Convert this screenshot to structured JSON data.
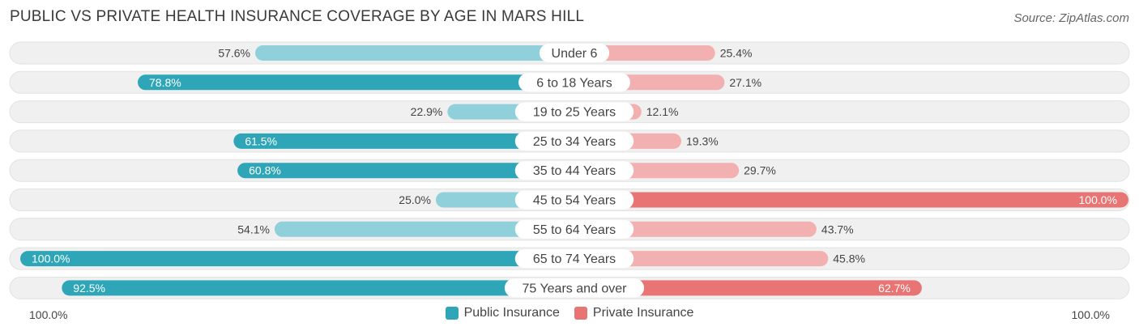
{
  "title": "PUBLIC VS PRIVATE HEALTH INSURANCE COVERAGE BY AGE IN MARS HILL",
  "source": "Source: ZipAtlas.com",
  "axis": {
    "left_label": "100.0%",
    "right_label": "100.0%"
  },
  "legend": {
    "public_label": "Public Insurance",
    "private_label": "Private Insurance"
  },
  "colors": {
    "public_strong": "#2ea6b8",
    "public_light": "#8fd0da",
    "private_strong": "#e87474",
    "private_light": "#f2b0b0",
    "row_bg": "#f0f0f0"
  },
  "chart_data": {
    "type": "bar",
    "orientation": "diverging-horizontal",
    "categories": [
      "Under 6",
      "6 to 18 Years",
      "19 to 25 Years",
      "25 to 34 Years",
      "35 to 44 Years",
      "45 to 54 Years",
      "55 to 64 Years",
      "65 to 74 Years",
      "75 Years and over"
    ],
    "series": [
      {
        "name": "Public Insurance",
        "values": [
          57.6,
          78.8,
          22.9,
          61.5,
          60.8,
          25.0,
          54.1,
          100.0,
          92.5
        ],
        "labels": [
          "57.6%",
          "78.8%",
          "22.9%",
          "61.5%",
          "60.8%",
          "25.0%",
          "54.1%",
          "100.0%",
          "92.5%"
        ]
      },
      {
        "name": "Private Insurance",
        "values": [
          25.4,
          27.1,
          12.1,
          19.3,
          29.7,
          100.0,
          43.7,
          45.8,
          62.7
        ],
        "labels": [
          "25.4%",
          "27.1%",
          "12.1%",
          "19.3%",
          "29.7%",
          "100.0%",
          "43.7%",
          "45.8%",
          "62.7%"
        ]
      }
    ],
    "xlim": [
      0,
      100
    ],
    "legend_position": "bottom-center"
  }
}
